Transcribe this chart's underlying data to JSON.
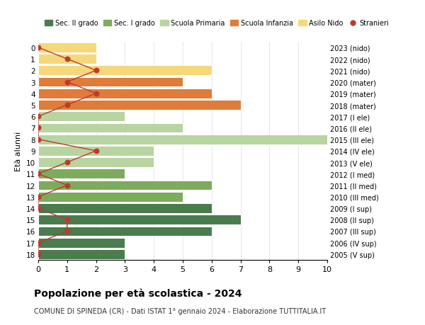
{
  "ages": [
    18,
    17,
    16,
    15,
    14,
    13,
    12,
    11,
    10,
    9,
    8,
    7,
    6,
    5,
    4,
    3,
    2,
    1,
    0
  ],
  "right_labels": [
    "2005 (V sup)",
    "2006 (IV sup)",
    "2007 (III sup)",
    "2008 (II sup)",
    "2009 (I sup)",
    "2010 (III med)",
    "2011 (II med)",
    "2012 (I med)",
    "2013 (V ele)",
    "2014 (IV ele)",
    "2015 (III ele)",
    "2016 (II ele)",
    "2017 (I ele)",
    "2018 (mater)",
    "2019 (mater)",
    "2020 (mater)",
    "2021 (nido)",
    "2022 (nido)",
    "2023 (nido)"
  ],
  "bar_values": [
    3,
    3,
    6,
    7,
    6,
    5,
    6,
    3,
    4,
    4,
    10,
    5,
    3,
    7,
    6,
    5,
    6,
    2,
    2
  ],
  "bar_colors": [
    "#4a7c4e",
    "#4a7c4e",
    "#4a7c4e",
    "#4a7c4e",
    "#4a7c4e",
    "#7dab5e",
    "#7dab5e",
    "#7dab5e",
    "#b8d4a0",
    "#b8d4a0",
    "#b8d4a0",
    "#b8d4a0",
    "#b8d4a0",
    "#e07c39",
    "#e07c39",
    "#e07c39",
    "#f5d87a",
    "#f5d87a",
    "#f5d87a"
  ],
  "stranieri_values": [
    0,
    0,
    1,
    1,
    0,
    0,
    1,
    0,
    1,
    2,
    0,
    0,
    0,
    1,
    2,
    1,
    2,
    1,
    0
  ],
  "title": "Popolazione per età scolastica - 2024",
  "subtitle": "COMUNE DI SPINEDA (CR) - Dati ISTAT 1° gennaio 2024 - Elaborazione TUTTITALIA.IT",
  "ylabel_left": "Età alunni",
  "xlim": [
    0,
    10
  ],
  "legend_items": [
    {
      "label": "Sec. II grado",
      "color": "#4a7c4e"
    },
    {
      "label": "Sec. I grado",
      "color": "#7dab5e"
    },
    {
      "label": "Scuola Primaria",
      "color": "#b8d4a0"
    },
    {
      "label": "Scuola Infanzia",
      "color": "#e07c39"
    },
    {
      "label": "Asilo Nido",
      "color": "#f5d87a"
    },
    {
      "label": "Stranieri",
      "color": "#c0392b"
    }
  ],
  "bg_color": "#ffffff",
  "grid_color": "#cccccc"
}
